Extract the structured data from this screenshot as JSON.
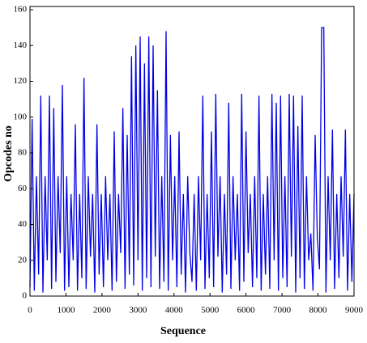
{
  "chart_data": {
    "type": "line",
    "xlabel": "Sequence",
    "ylabel": "Opcodes no",
    "x": [
      0,
      60,
      120,
      180,
      240,
      300,
      360,
      420,
      480,
      540,
      600,
      660,
      720,
      780,
      840,
      900,
      960,
      1020,
      1080,
      1140,
      1200,
      1260,
      1320,
      1380,
      1440,
      1500,
      1560,
      1620,
      1680,
      1740,
      1800,
      1860,
      1920,
      1980,
      2040,
      2100,
      2160,
      2220,
      2280,
      2340,
      2400,
      2460,
      2520,
      2580,
      2640,
      2700,
      2760,
      2820,
      2880,
      2940,
      3000,
      3060,
      3120,
      3180,
      3240,
      3300,
      3360,
      3420,
      3480,
      3540,
      3600,
      3660,
      3720,
      3780,
      3840,
      3900,
      3960,
      4020,
      4080,
      4140,
      4200,
      4260,
      4320,
      4380,
      4440,
      4500,
      4560,
      4620,
      4680,
      4740,
      4800,
      4860,
      4920,
      4980,
      5040,
      5100,
      5160,
      5220,
      5280,
      5340,
      5400,
      5460,
      5520,
      5580,
      5640,
      5700,
      5760,
      5820,
      5880,
      5940,
      6000,
      6060,
      6120,
      6180,
      6240,
      6300,
      6360,
      6420,
      6480,
      6540,
      6600,
      6660,
      6720,
      6780,
      6840,
      6900,
      6960,
      7020,
      7080,
      7140,
      7200,
      7260,
      7320,
      7380,
      7440,
      7500,
      7560,
      7620,
      7680,
      7740,
      7800,
      7860,
      7920,
      7980,
      8040,
      8100,
      8160,
      8220,
      8280,
      8340,
      8400,
      8460,
      8520,
      8580,
      8640,
      8700,
      8760,
      8820,
      8880,
      8940,
      9000
    ],
    "series": [
      {
        "color": "#0000e6",
        "values": [
          5,
          99,
          3,
          67,
          12,
          112,
          2,
          67,
          20,
          112,
          4,
          105,
          8,
          67,
          24,
          118,
          3,
          67,
          5,
          57,
          20,
          96,
          3,
          57,
          10,
          122,
          4,
          67,
          22,
          57,
          2,
          96,
          12,
          57,
          5,
          67,
          20,
          57,
          3,
          92,
          8,
          57,
          24,
          105,
          4,
          90,
          12,
          134,
          6,
          140,
          20,
          145,
          3,
          130,
          10,
          145,
          5,
          140,
          22,
          115,
          4,
          67,
          8,
          148,
          3,
          90,
          20,
          67,
          5,
          92,
          12,
          57,
          2,
          67,
          24,
          8,
          57,
          3,
          67,
          20,
          112,
          4,
          57,
          10,
          92,
          5,
          113,
          22,
          67,
          2,
          57,
          12,
          108,
          4,
          67,
          20,
          57,
          3,
          113,
          8,
          92,
          24,
          57,
          5,
          67,
          10,
          112,
          3,
          57,
          12,
          67,
          4,
          113,
          20,
          108,
          3,
          112,
          10,
          67,
          5,
          113,
          22,
          112,
          2,
          95,
          10,
          112,
          4,
          67,
          20,
          35,
          3,
          90,
          33,
          15,
          150,
          150,
          2,
          67,
          20,
          93,
          4,
          57,
          10,
          67,
          22,
          93,
          3,
          57,
          8,
          57
        ]
      }
    ],
    "xlim": [
      0,
      9000
    ],
    "xticks": [
      0,
      1000,
      2000,
      3000,
      4000,
      5000,
      6000,
      7000,
      8000,
      9000
    ],
    "ylim": [
      0,
      160
    ],
    "yticks": [
      0,
      20,
      40,
      60,
      80,
      100,
      120,
      140,
      160
    ]
  }
}
